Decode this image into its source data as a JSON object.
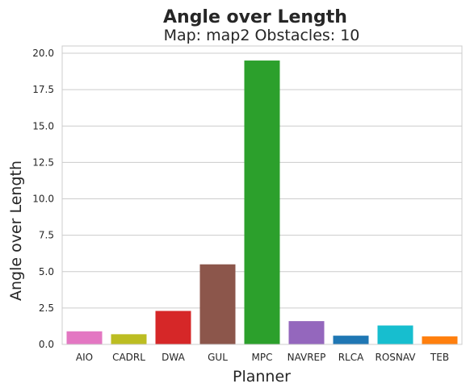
{
  "chart_data": {
    "type": "bar",
    "title": "Angle over Length",
    "subtitle": "Map: map2 Obstacles: 10",
    "xlabel": "Planner",
    "ylabel": "Angle over Length",
    "ylim": [
      0,
      20.5
    ],
    "yticks": [
      "0.0",
      "2.5",
      "5.0",
      "7.5",
      "10.0",
      "12.5",
      "15.0",
      "17.5",
      "20.0"
    ],
    "ytick_values": [
      0,
      2.5,
      5,
      7.5,
      10,
      12.5,
      15,
      17.5,
      20
    ],
    "grid": "horizontal",
    "categories": [
      "AIO",
      "CADRL",
      "DWA",
      "GUL",
      "MPC",
      "NAVREP",
      "RLCA",
      "ROSNAV",
      "TEB"
    ],
    "values": [
      0.9,
      0.7,
      2.3,
      5.5,
      19.5,
      1.6,
      0.6,
      1.3,
      0.55
    ],
    "colors": [
      "#e377c2",
      "#bcbd22",
      "#d62728",
      "#8c564b",
      "#2ca02c",
      "#9467bd",
      "#1f77b4",
      "#17becf",
      "#ff7f0e"
    ]
  }
}
